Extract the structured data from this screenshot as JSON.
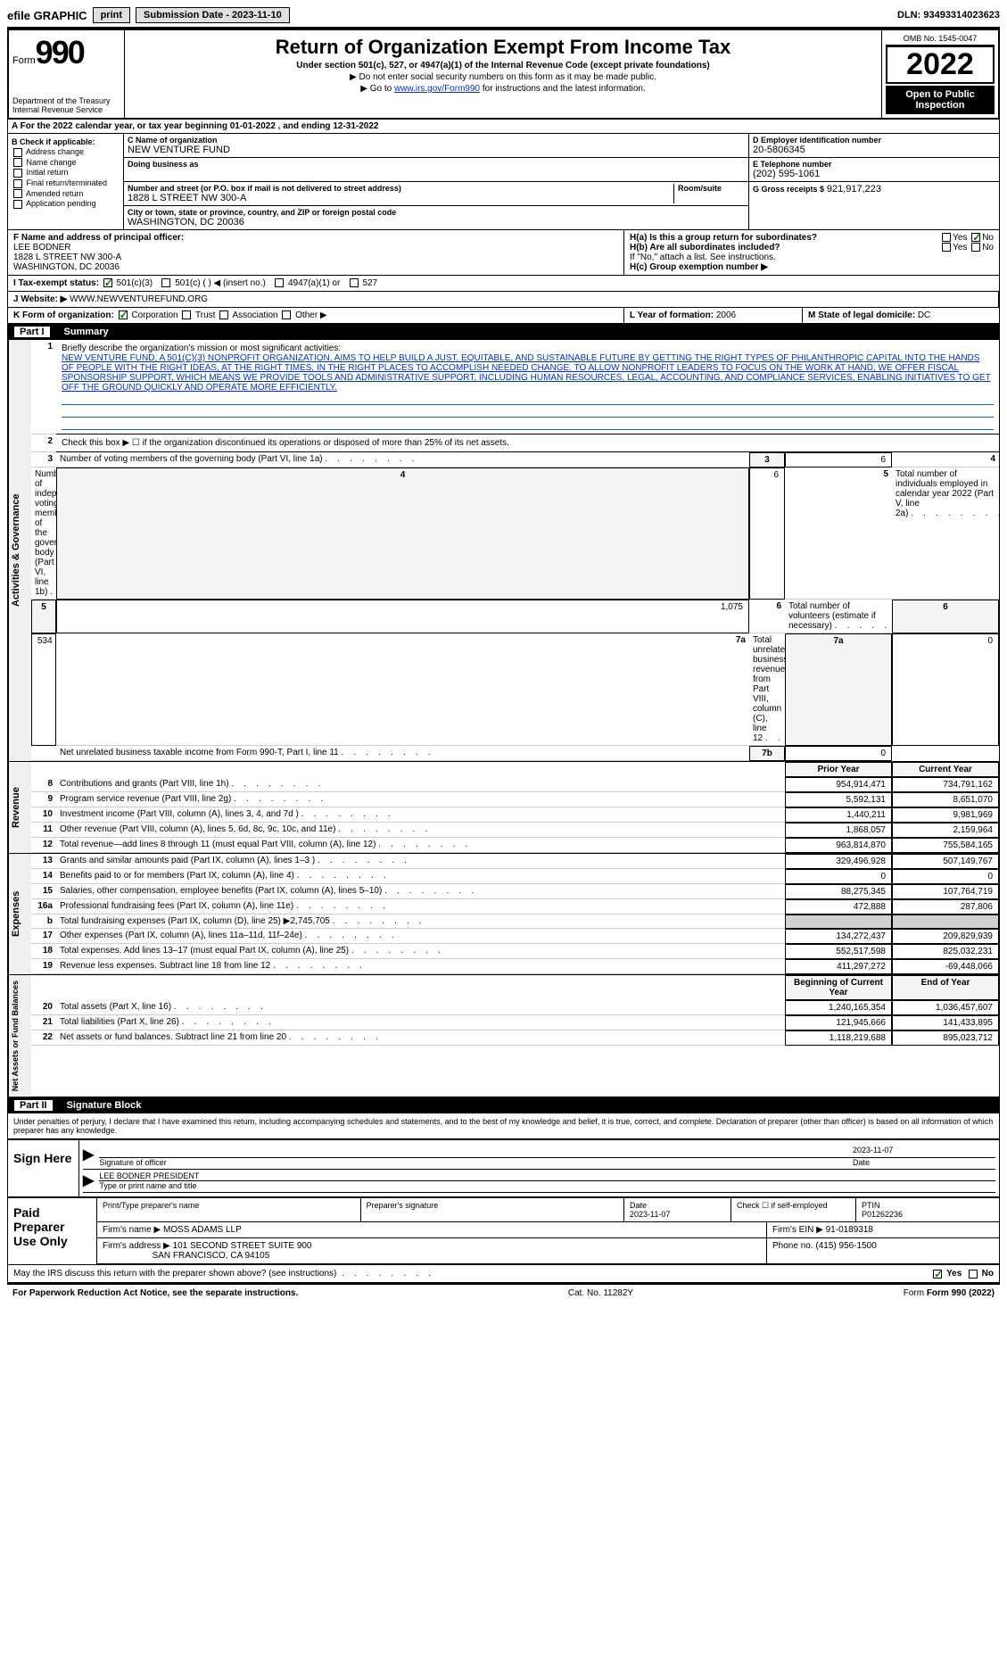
{
  "topbar": {
    "efile": "efile GRAPHIC",
    "print": "print",
    "sub_label": "Submission Date - 2023-11-10",
    "dln": "DLN: 93493314023623"
  },
  "header": {
    "form_label": "Form",
    "form_num": "990",
    "dept": "Department of the Treasury\nInternal Revenue Service",
    "title": "Return of Organization Exempt From Income Tax",
    "sub": "Under section 501(c), 527, or 4947(a)(1) of the Internal Revenue Code (except private foundations)",
    "note1": "▶ Do not enter social security numbers on this form as it may be made public.",
    "note2_pre": "▶ Go to ",
    "note2_link": "www.irs.gov/Form990",
    "note2_post": " for instructions and the latest information.",
    "omb": "OMB No. 1545-0047",
    "year": "2022",
    "inspect": "Open to Public Inspection"
  },
  "row_a": "A For the 2022 calendar year, or tax year beginning 01-01-2022   , and ending 12-31-2022",
  "section_b": {
    "label": "B Check if applicable:",
    "opts": [
      "Address change",
      "Name change",
      "Initial return",
      "Final return/terminated",
      "Amended return",
      "Application pending"
    ]
  },
  "section_c": {
    "name_label": "C Name of organization",
    "name": "NEW VENTURE FUND",
    "dba_label": "Doing business as",
    "dba": "",
    "addr_label": "Number and street (or P.O. box if mail is not delivered to street address)",
    "addr": "1828 L STREET NW 300-A",
    "room_label": "Room/suite",
    "city_label": "City or town, state or province, country, and ZIP or foreign postal code",
    "city": "WASHINGTON, DC  20036"
  },
  "section_d": {
    "ein_label": "D Employer identification number",
    "ein": "20-5806345",
    "tel_label": "E Telephone number",
    "tel": "(202) 595-1061",
    "gross_label": "G Gross receipts $",
    "gross": "921,917,223"
  },
  "section_f": {
    "label": "F  Name and address of principal officer:",
    "name": "LEE BODNER",
    "addr1": "1828 L STREET NW 300-A",
    "addr2": "WASHINGTON, DC  20036"
  },
  "section_h": {
    "ha": "H(a)  Is this a group return for subordinates?",
    "ha_yes": "Yes",
    "ha_no": "No",
    "hb": "H(b)  Are all subordinates included?",
    "hb_yes": "Yes",
    "hb_no": "No",
    "hb_note": "If \"No,\" attach a list. See instructions.",
    "hc": "H(c)  Group exemption number ▶"
  },
  "row_i": {
    "label": "I   Tax-exempt status:",
    "o1": "501(c)(3)",
    "o2": "501(c) (  ) ◀ (insert no.)",
    "o3": "4947(a)(1) or",
    "o4": "527"
  },
  "row_j": {
    "label": "J   Website: ▶",
    "val": "WWW.NEWVENTUREFUND.ORG"
  },
  "row_k": {
    "label": "K Form of organization:",
    "o1": "Corporation",
    "o2": "Trust",
    "o3": "Association",
    "o4": "Other ▶",
    "l_label": "L Year of formation:",
    "l_val": "2006",
    "m_label": "M State of legal domicile:",
    "m_val": "DC"
  },
  "part1": {
    "num": "Part I",
    "title": "Summary",
    "line1_label": "Briefly describe the organization's mission or most significant activities:",
    "mission": "NEW VENTURE FUND, A 501(C)(3) NONPROFIT ORGANIZATION, AIMS TO HELP BUILD A JUST, EQUITABLE, AND SUSTAINABLE FUTURE BY GETTING THE RIGHT TYPES OF PHILANTHROPIC CAPITAL INTO THE HANDS OF PEOPLE WITH THE RIGHT IDEAS, AT THE RIGHT TIMES, IN THE RIGHT PLACES TO ACCOMPLISH NEEDED CHANGE. TO ALLOW NONPROFIT LEADERS TO FOCUS ON THE WORK AT HAND, WE OFFER FISCAL SPONSORSHIP SUPPORT, WHICH MEANS WE PROVIDE TOOLS AND ADMINISTRATIVE SUPPORT, INCLUDING HUMAN RESOURCES, LEGAL, ACCOUNTING, AND COMPLIANCE SERVICES, ENABLING INITIATIVES TO GET OFF THE GROUND QUICKLY AND OPERATE MORE EFFICIENTLY.",
    "line2": "Check this box ▶ ☐ if the organization discontinued its operations or disposed of more than 25% of its net assets."
  },
  "gov_side": "Activities & Governance",
  "rev_side": "Revenue",
  "exp_side": "Expenses",
  "net_side": "Net Assets or Fund Balances",
  "gov_rows": [
    {
      "n": "3",
      "d": "Number of voting members of the governing body (Part VI, line 1a)",
      "box": "3",
      "v": "6"
    },
    {
      "n": "4",
      "d": "Number of independent voting members of the governing body (Part VI, line 1b)",
      "box": "4",
      "v": "6"
    },
    {
      "n": "5",
      "d": "Total number of individuals employed in calendar year 2022 (Part V, line 2a)",
      "box": "5",
      "v": "1,075"
    },
    {
      "n": "6",
      "d": "Total number of volunteers (estimate if necessary)",
      "box": "6",
      "v": "534"
    },
    {
      "n": "7a",
      "d": "Total unrelated business revenue from Part VIII, column (C), line 12",
      "box": "7a",
      "v": "0"
    },
    {
      "n": "",
      "d": "Net unrelated business taxable income from Form 990-T, Part I, line 11",
      "box": "7b",
      "v": "0"
    }
  ],
  "rev_hdr": {
    "prior": "Prior Year",
    "curr": "Current Year"
  },
  "rev_rows": [
    {
      "n": "8",
      "d": "Contributions and grants (Part VIII, line 1h)",
      "p": "954,914,471",
      "c": "734,791,162"
    },
    {
      "n": "9",
      "d": "Program service revenue (Part VIII, line 2g)",
      "p": "5,592,131",
      "c": "8,651,070"
    },
    {
      "n": "10",
      "d": "Investment income (Part VIII, column (A), lines 3, 4, and 7d )",
      "p": "1,440,211",
      "c": "9,981,969"
    },
    {
      "n": "11",
      "d": "Other revenue (Part VIII, column (A), lines 5, 6d, 8c, 9c, 10c, and 11e)",
      "p": "1,868,057",
      "c": "2,159,964"
    },
    {
      "n": "12",
      "d": "Total revenue—add lines 8 through 11 (must equal Part VIII, column (A), line 12)",
      "p": "963,814,870",
      "c": "755,584,165"
    }
  ],
  "exp_rows": [
    {
      "n": "13",
      "d": "Grants and similar amounts paid (Part IX, column (A), lines 1–3 )",
      "p": "329,496,928",
      "c": "507,149,767"
    },
    {
      "n": "14",
      "d": "Benefits paid to or for members (Part IX, column (A), line 4)",
      "p": "0",
      "c": "0"
    },
    {
      "n": "15",
      "d": "Salaries, other compensation, employee benefits (Part IX, column (A), lines 5–10)",
      "p": "88,275,345",
      "c": "107,764,719"
    },
    {
      "n": "16a",
      "d": "Professional fundraising fees (Part IX, column (A), line 11e)",
      "p": "472,888",
      "c": "287,806"
    },
    {
      "n": "b",
      "d": "Total fundraising expenses (Part IX, column (D), line 25) ▶2,745,705",
      "p": "",
      "c": "",
      "blank": true
    },
    {
      "n": "17",
      "d": "Other expenses (Part IX, column (A), lines 11a–11d, 11f–24e)",
      "p": "134,272,437",
      "c": "209,829,939"
    },
    {
      "n": "18",
      "d": "Total expenses. Add lines 13–17 (must equal Part IX, column (A), line 25)",
      "p": "552,517,598",
      "c": "825,032,231"
    },
    {
      "n": "19",
      "d": "Revenue less expenses. Subtract line 18 from line 12",
      "p": "411,297,272",
      "c": "-69,448,066"
    }
  ],
  "net_hdr": {
    "b": "Beginning of Current Year",
    "e": "End of Year"
  },
  "net_rows": [
    {
      "n": "20",
      "d": "Total assets (Part X, line 16)",
      "p": "1,240,165,354",
      "c": "1,036,457,607"
    },
    {
      "n": "21",
      "d": "Total liabilities (Part X, line 26)",
      "p": "121,945,666",
      "c": "141,433,895"
    },
    {
      "n": "22",
      "d": "Net assets or fund balances. Subtract line 21 from line 20",
      "p": "1,118,219,688",
      "c": "895,023,712"
    }
  ],
  "part2": {
    "num": "Part II",
    "title": "Signature Block"
  },
  "perjury": "Under penalties of perjury, I declare that I have examined this return, including accompanying schedules and statements, and to the best of my knowledge and belief, it is true, correct, and complete. Declaration of preparer (other than officer) is based on all information of which preparer has any knowledge.",
  "sign": {
    "lab": "Sign Here",
    "sig_lbl": "Signature of officer",
    "date_lbl": "Date",
    "date": "2023-11-07",
    "name": "LEE BODNER PRESIDENT",
    "name_lbl": "Type or print name and title"
  },
  "prep": {
    "lab": "Paid Preparer Use Only",
    "h1": "Print/Type preparer's name",
    "h2": "Preparer's signature",
    "h3": "Date",
    "h3v": "2023-11-07",
    "h4": "Check ☐ if self-employed",
    "h5": "PTIN",
    "h5v": "P01262236",
    "firm_lbl": "Firm's name    ▶",
    "firm": "MOSS ADAMS LLP",
    "ein_lbl": "Firm's EIN ▶",
    "ein": "91-0189318",
    "addr_lbl": "Firm's address ▶",
    "addr": "101 SECOND STREET SUITE 900",
    "addr2": "SAN FRANCISCO, CA  94105",
    "phone_lbl": "Phone no.",
    "phone": "(415) 956-1500"
  },
  "discuss": {
    "q": "May the IRS discuss this return with the preparer shown above? (see instructions)",
    "yes": "Yes",
    "no": "No"
  },
  "footer": {
    "l": "For Paperwork Reduction Act Notice, see the separate instructions.",
    "c": "Cat. No. 11282Y",
    "r": "Form 990 (2022)"
  }
}
